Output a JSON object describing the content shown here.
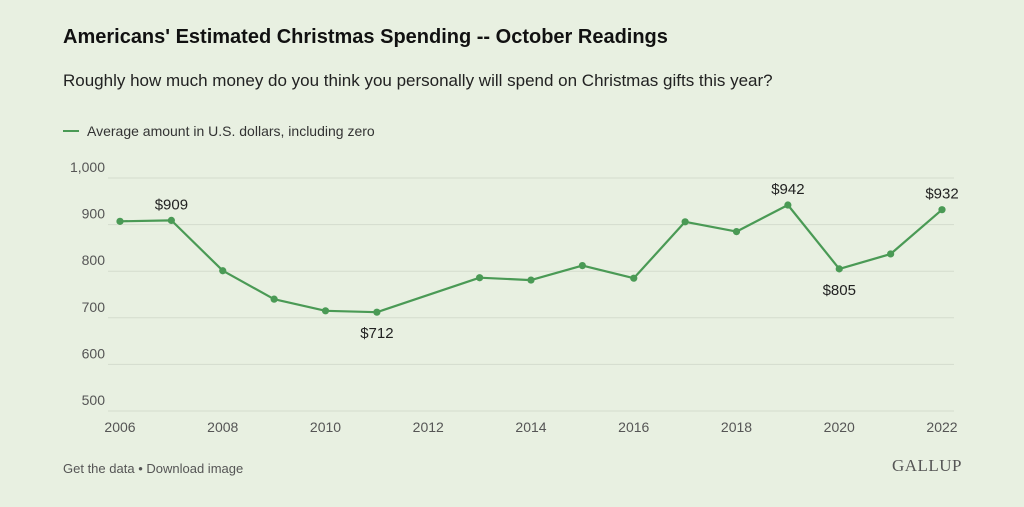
{
  "header": {
    "title": "Americans' Estimated Christmas Spending -- October Readings",
    "subtitle": "Roughly how much money do you think you personally will spend on Christmas gifts this year?"
  },
  "legend": {
    "label": "Average amount in U.S. dollars, including zero"
  },
  "footer": {
    "get_data": "Get the data",
    "separator": "•",
    "download": "Download image",
    "logo": "GALLUP"
  },
  "colors": {
    "line": "#4a9a55",
    "grid": "#d4dccd",
    "background": "#e8f0e1"
  },
  "chart_data": {
    "type": "line",
    "title": "Americans' Estimated Christmas Spending -- October Readings",
    "subtitle": "Roughly how much money do you think you personally will spend on Christmas gifts this year?",
    "xlabel": "",
    "ylabel": "",
    "xlim": [
      2006,
      2022
    ],
    "ylim": [
      500,
      1000
    ],
    "x_ticks": [
      2006,
      2008,
      2010,
      2012,
      2014,
      2016,
      2018,
      2020,
      2022
    ],
    "y_ticks": [
      500,
      600,
      700,
      800,
      900,
      1000
    ],
    "y_tick_labels": [
      "500",
      "600",
      "700",
      "800",
      "900",
      "1,000"
    ],
    "grid": true,
    "legend_position": "top-left",
    "series": [
      {
        "name": "Average amount in U.S. dollars, including zero",
        "x": [
          2006,
          2007,
          2008,
          2009,
          2010,
          2011,
          2013,
          2014,
          2015,
          2016,
          2017,
          2018,
          2019,
          2020,
          2021,
          2022
        ],
        "values": [
          907,
          909,
          801,
          740,
          715,
          712,
          786,
          781,
          812,
          785,
          906,
          885,
          942,
          805,
          837,
          932
        ]
      }
    ],
    "annotations": [
      {
        "x": 2007,
        "y": 909,
        "text": "$909",
        "placement": "above"
      },
      {
        "x": 2011,
        "y": 712,
        "text": "$712",
        "placement": "below"
      },
      {
        "x": 2019,
        "y": 942,
        "text": "$942",
        "placement": "above"
      },
      {
        "x": 2020,
        "y": 805,
        "text": "$805",
        "placement": "below"
      },
      {
        "x": 2022,
        "y": 932,
        "text": "$932",
        "placement": "above"
      }
    ]
  }
}
